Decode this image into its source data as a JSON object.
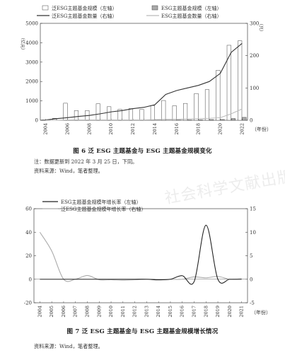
{
  "watermark": "社会科学文献出版社版权所有",
  "figure6": {
    "caption": "图 6   泛 ESG 主题基金与 ESG 主题基金规模变化",
    "note": "注：数据更新到 2022 年 3 月 25 日，下同。",
    "source": "资料来源：Wind，笔者整理。"
  },
  "figure7": {
    "caption": "图 7   泛 ESG 主题基金与 ESG 主题基金规模增长情况",
    "source": "资料来源：Wind，笔者整理。"
  },
  "chart_data": [
    {
      "type": "bar",
      "title": "图 6   泛 ESG 主题基金与 ESG 主题基金规模变化",
      "ylabel": "（亿元）",
      "y2label": "（只）",
      "xlabel": "（年份）",
      "ylim": [
        0,
        5000
      ],
      "y2lim": [
        0,
        300
      ],
      "yticks": [
        "0",
        "1000",
        "2000",
        "3000",
        "4000",
        "5000"
      ],
      "y2ticks": [
        "0",
        "100",
        "200",
        "300"
      ],
      "x_tick_labels": [
        "2004",
        "2006",
        "2008",
        "2010",
        "2012",
        "2014",
        "2016",
        "2018",
        "2020",
        "2022"
      ],
      "legend_position": "top",
      "categories": [
        "2004",
        "2005",
        "2006",
        "2007",
        "2008",
        "2009",
        "2010",
        "2011",
        "2012",
        "2013",
        "2014",
        "2015",
        "2016",
        "2017",
        "2018",
        "2019",
        "2020",
        "2021",
        "2022"
      ],
      "series": [
        {
          "name": "泛ESG主题基金规模（左轴）",
          "kind": "bar",
          "axis": "left",
          "color": "#ffffff",
          "values": [
            20,
            100,
            880,
            500,
            500,
            850,
            700,
            560,
            600,
            560,
            760,
            1020,
            750,
            870,
            1380,
            1580,
            2580,
            3870,
            4100
          ]
        },
        {
          "name": "ESG主题基金规模（左轴）",
          "kind": "bar",
          "axis": "left",
          "color": "#aaaaaa",
          "values": [
            0,
            0,
            0,
            0,
            0,
            0,
            0,
            0,
            0,
            0,
            0,
            0,
            10,
            15,
            20,
            35,
            40,
            90,
            150
          ]
        },
        {
          "name": "泛ESG主题基金数量（右轴）",
          "kind": "line",
          "axis": "right",
          "color": "#333333",
          "values": [
            1,
            5,
            8,
            12,
            15,
            20,
            26,
            30,
            36,
            40,
            48,
            80,
            92,
            100,
            108,
            120,
            145,
            210,
            238
          ]
        },
        {
          "name": "ESG主题基金数量（右轴）",
          "kind": "line",
          "axis": "right",
          "color": "#bbbbbb",
          "values": [
            0,
            0,
            1,
            1,
            1,
            1,
            1,
            1,
            1,
            1,
            2,
            3,
            3,
            4,
            5,
            6,
            8,
            20,
            35
          ]
        }
      ]
    },
    {
      "type": "line",
      "title": "图 7   泛 ESG 主题基金与 ESG 主题基金规模增长情况",
      "xlabel": "（年份）",
      "ylim": [
        -20,
        60
      ],
      "y2lim": [
        -5,
        15
      ],
      "yticks": [
        "-20",
        "0",
        "20",
        "40",
        "60"
      ],
      "y2ticks": [
        "-5",
        "0",
        "5",
        "10",
        "15"
      ],
      "legend_position": "top-left",
      "categories": [
        "2004",
        "2005",
        "2006",
        "2007",
        "2008",
        "2009",
        "2010",
        "2011",
        "2012",
        "2013",
        "2014",
        "2015",
        "2016",
        "2017",
        "2018",
        "2019",
        "2020",
        "2021"
      ],
      "series": [
        {
          "name": "ESG主题基金规模年增长率（左轴）",
          "axis": "left",
          "color": "#222222",
          "values": [
            0,
            0,
            0,
            0,
            0,
            0,
            0,
            0,
            0,
            0,
            -0.5,
            0,
            3,
            -2,
            46,
            0,
            0,
            0
          ]
        },
        {
          "name": "泛ESG主题基金规模年增长率（右轴）",
          "axis": "right",
          "color": "#aaaaaa",
          "values": [
            10,
            6,
            0,
            0,
            0.8,
            -0.1,
            -0.1,
            -0.2,
            -0.1,
            0,
            0,
            0,
            0,
            0.5,
            0.3,
            0.6,
            0,
            0.1
          ]
        }
      ]
    }
  ]
}
